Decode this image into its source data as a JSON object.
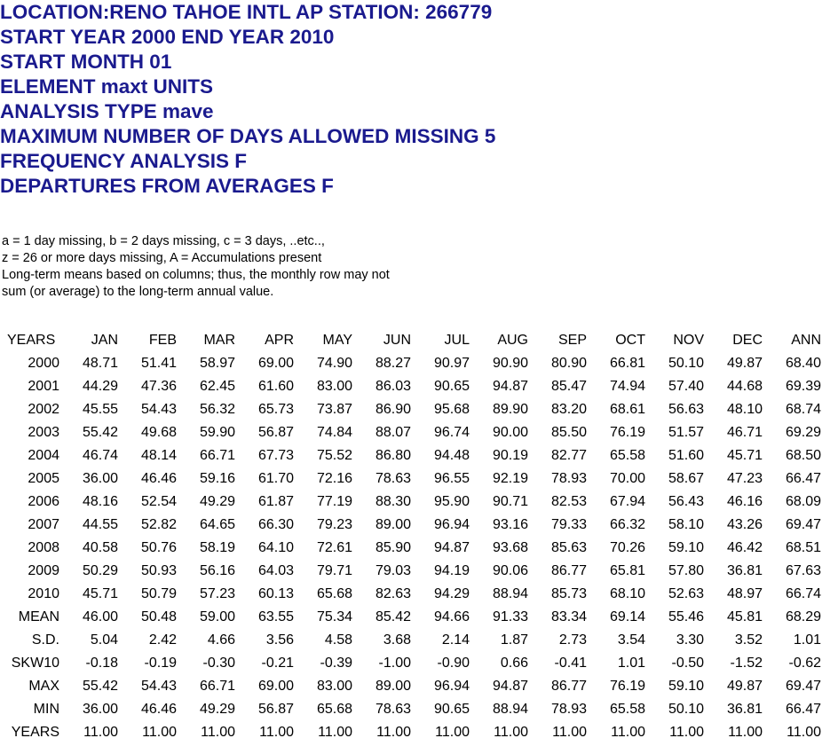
{
  "header": {
    "lines": [
      "LOCATION:RENO TAHOE INTL AP  STATION: 266779",
      "START YEAR 2000 END YEAR 2010",
      "START MONTH 01",
      "ELEMENT maxt UNITS",
      "ANALYSIS TYPE mave",
      "MAXIMUM NUMBER OF DAYS ALLOWED MISSING 5",
      "FREQUENCY ANALYSIS F",
      "DEPARTURES FROM AVERAGES F"
    ]
  },
  "notes": {
    "lines": [
      "a = 1 day missing, b = 2 days missing, c = 3 days, ..etc..,",
      "z = 26 or more days missing, A = Accumulations present",
      "Long-term means based on columns; thus, the monthly row may not",
      "sum (or average) to the long-term annual value."
    ]
  },
  "table": {
    "headers": [
      "YEARS",
      "JAN",
      "FEB",
      "MAR",
      "APR",
      "MAY",
      "JUN",
      "JUL",
      "AUG",
      "SEP",
      "OCT",
      "NOV",
      "DEC",
      "ANN"
    ],
    "rows": [
      [
        "2000",
        "48.71",
        "51.41",
        "58.97",
        "69.00",
        "74.90",
        "88.27",
        "90.97",
        "90.90",
        "80.90",
        "66.81",
        "50.10",
        "49.87",
        "68.40"
      ],
      [
        "2001",
        "44.29",
        "47.36",
        "62.45",
        "61.60",
        "83.00",
        "86.03",
        "90.65",
        "94.87",
        "85.47",
        "74.94",
        "57.40",
        "44.68",
        "69.39"
      ],
      [
        "2002",
        "45.55",
        "54.43",
        "56.32",
        "65.73",
        "73.87",
        "86.90",
        "95.68",
        "89.90",
        "83.20",
        "68.61",
        "56.63",
        "48.10",
        "68.74"
      ],
      [
        "2003",
        "55.42",
        "49.68",
        "59.90",
        "56.87",
        "74.84",
        "88.07",
        "96.74",
        "90.00",
        "85.50",
        "76.19",
        "51.57",
        "46.71",
        "69.29"
      ],
      [
        "2004",
        "46.74",
        "48.14",
        "66.71",
        "67.73",
        "75.52",
        "86.80",
        "94.48",
        "90.19",
        "82.77",
        "65.58",
        "51.60",
        "45.71",
        "68.50"
      ],
      [
        "2005",
        "36.00",
        "46.46",
        "59.16",
        "61.70",
        "72.16",
        "78.63",
        "96.55",
        "92.19",
        "78.93",
        "70.00",
        "58.67",
        "47.23",
        "66.47"
      ],
      [
        "2006",
        "48.16",
        "52.54",
        "49.29",
        "61.87",
        "77.19",
        "88.30",
        "95.90",
        "90.71",
        "82.53",
        "67.94",
        "56.43",
        "46.16",
        "68.09"
      ],
      [
        "2007",
        "44.55",
        "52.82",
        "64.65",
        "66.30",
        "79.23",
        "89.00",
        "96.94",
        "93.16",
        "79.33",
        "66.32",
        "58.10",
        "43.26",
        "69.47"
      ],
      [
        "2008",
        "40.58",
        "50.76",
        "58.19",
        "64.10",
        "72.61",
        "85.90",
        "94.87",
        "93.68",
        "85.63",
        "70.26",
        "59.10",
        "46.42",
        "68.51"
      ],
      [
        "2009",
        "50.29",
        "50.93",
        "56.16",
        "64.03",
        "79.71",
        "79.03",
        "94.19",
        "90.06",
        "86.77",
        "65.81",
        "57.80",
        "36.81",
        "67.63"
      ],
      [
        "2010",
        "45.71",
        "50.79",
        "57.23",
        "60.13",
        "65.68",
        "82.63",
        "94.29",
        "88.94",
        "85.73",
        "68.10",
        "52.63",
        "48.97",
        "66.74"
      ],
      [
        "MEAN",
        "46.00",
        "50.48",
        "59.00",
        "63.55",
        "75.34",
        "85.42",
        "94.66",
        "91.33",
        "83.34",
        "69.14",
        "55.46",
        "45.81",
        "68.29"
      ],
      [
        "S.D.",
        "5.04",
        "2.42",
        "4.66",
        "3.56",
        "4.58",
        "3.68",
        "2.14",
        "1.87",
        "2.73",
        "3.54",
        "3.30",
        "3.52",
        "1.01"
      ],
      [
        "SKW10",
        "-0.18",
        "-0.19",
        "-0.30",
        "-0.21",
        "-0.39",
        "-1.00",
        "-0.90",
        "0.66",
        "-0.41",
        "1.01",
        "-0.50",
        "-1.52",
        "-0.62"
      ],
      [
        "MAX",
        "55.42",
        "54.43",
        "66.71",
        "69.00",
        "83.00",
        "89.00",
        "96.94",
        "94.87",
        "86.77",
        "76.19",
        "59.10",
        "49.87",
        "69.47"
      ],
      [
        "MIN",
        "36.00",
        "46.46",
        "49.29",
        "56.87",
        "65.68",
        "78.63",
        "90.65",
        "88.94",
        "78.93",
        "65.58",
        "50.10",
        "36.81",
        "66.47"
      ],
      [
        "YEARS",
        "11.00",
        "11.00",
        "11.00",
        "11.00",
        "11.00",
        "11.00",
        "11.00",
        "11.00",
        "11.00",
        "11.00",
        "11.00",
        "11.00",
        "11.00"
      ]
    ]
  },
  "colors": {
    "header_text": "#1a1a8e",
    "body_text": "#000000",
    "background": "#ffffff"
  }
}
